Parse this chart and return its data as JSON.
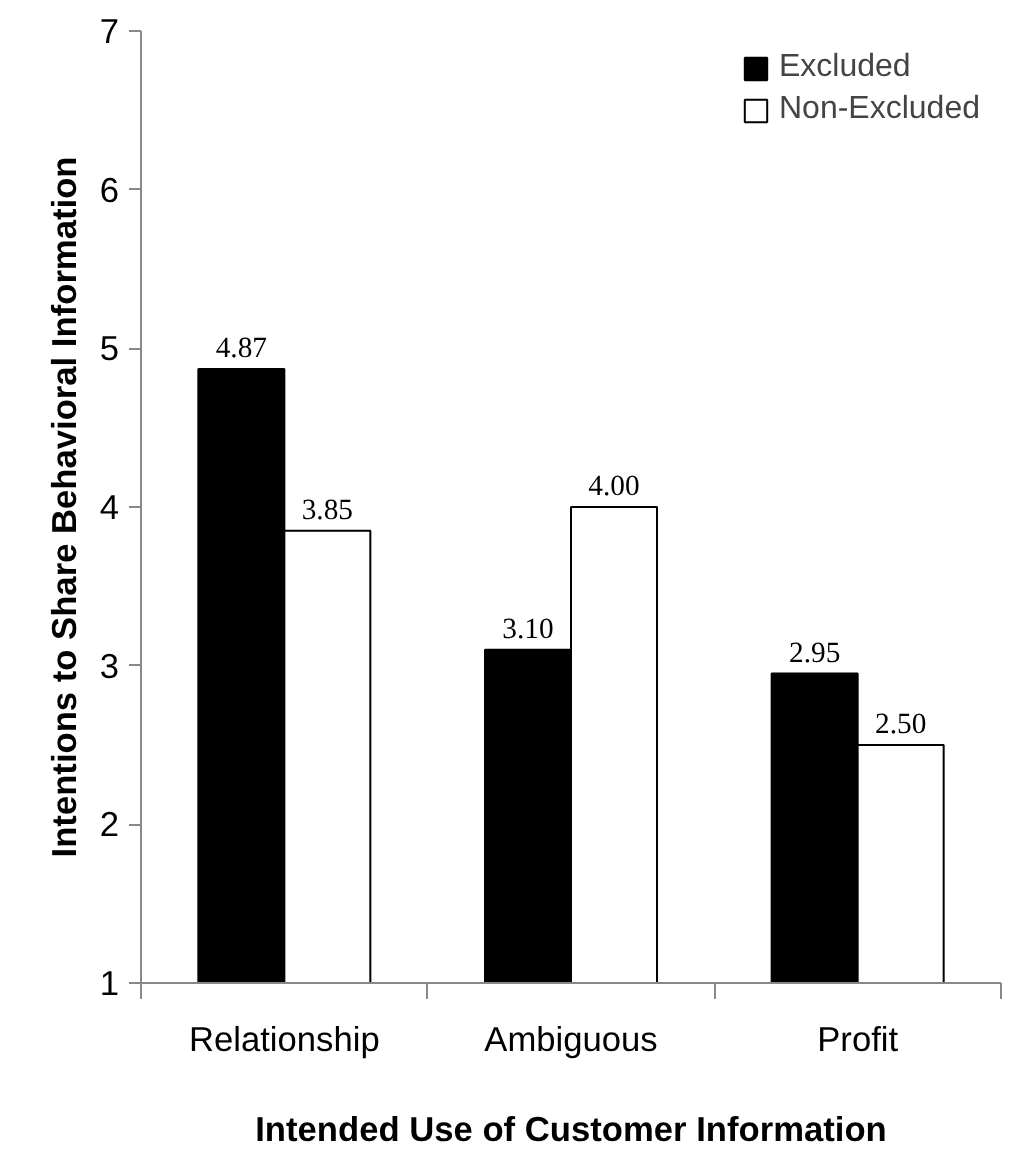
{
  "chart_data": {
    "type": "bar",
    "xlabel": "Intended Use of Customer Information",
    "ylabel": "Intentions to Share Behavioral Information",
    "categories": [
      "Relationship",
      "Ambiguous",
      "Profit"
    ],
    "series": [
      {
        "name": "Excluded",
        "color": "#000000",
        "values": [
          4.87,
          3.1,
          2.95
        ],
        "value_labels": [
          "4.87",
          "3.10",
          "2.95"
        ]
      },
      {
        "name": "Non-Excluded",
        "color": "#ffffff",
        "values": [
          3.85,
          4.0,
          2.5
        ],
        "value_labels": [
          "3.85",
          "4.00",
          "2.50"
        ]
      }
    ],
    "ylim": [
      1,
      7
    ],
    "yticks": [
      1,
      2,
      3,
      4,
      5,
      6,
      7
    ],
    "grid": false,
    "legend": "top right"
  }
}
